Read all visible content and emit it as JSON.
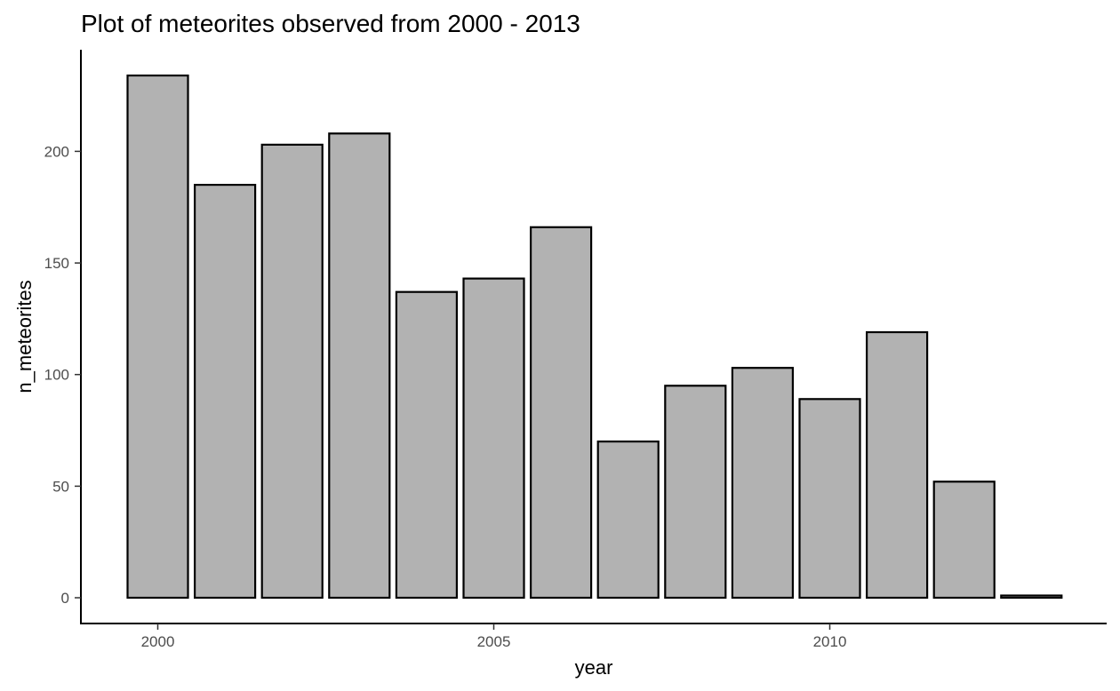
{
  "chart_data": {
    "type": "bar",
    "title": "Plot of meteorites observed from 2000 - 2013",
    "xlabel": "year",
    "ylabel": "n_meteorites",
    "categories": [
      2000,
      2001,
      2002,
      2003,
      2004,
      2005,
      2006,
      2007,
      2008,
      2009,
      2010,
      2011,
      2012,
      2013
    ],
    "values": [
      234,
      185,
      203,
      208,
      137,
      143,
      166,
      70,
      95,
      103,
      89,
      119,
      52,
      1
    ],
    "x_ticks": [
      2000,
      2005,
      2010
    ],
    "y_ticks": [
      0,
      50,
      100,
      150,
      200
    ],
    "ylim": [
      0,
      245
    ],
    "xlim": [
      1999.0,
      2014.0
    ],
    "grid": false,
    "legend": "none",
    "colors": {
      "bar_fill": "#b2b2b2",
      "bar_stroke": "#000000"
    }
  }
}
